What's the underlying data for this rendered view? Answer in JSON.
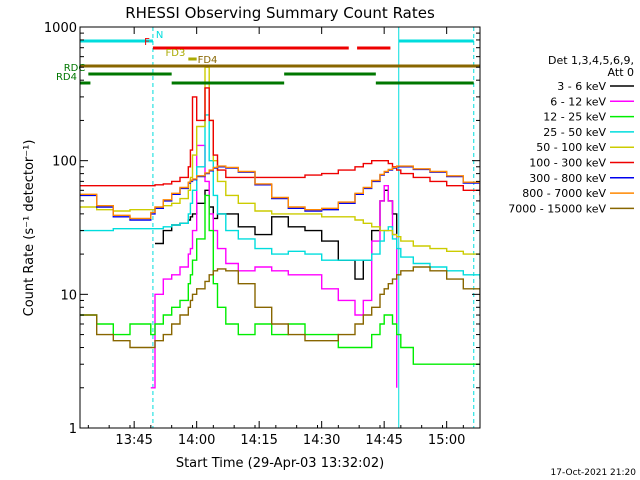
{
  "chart_data": {
    "type": "line",
    "title": "RHESSI Observing Summary Count Rates",
    "xlabel": "Start Time (29-Apr-03 13:32:02)",
    "ylabel": "Count Rate (s⁻¹ detector⁻¹)",
    "ylog": true,
    "ylim": [
      1,
      1000
    ],
    "xlim": [
      0,
      96
    ],
    "x_unit": "minutes after 13:32:02",
    "x_ticks": [
      {
        "t": 13.0,
        "label": "13:45"
      },
      {
        "t": 28.0,
        "label": "14:00"
      },
      {
        "t": 43.0,
        "label": "14:15"
      },
      {
        "t": 58.0,
        "label": "14:30"
      },
      {
        "t": 73.0,
        "label": "14:45"
      },
      {
        "t": 88.0,
        "label": "15:00"
      }
    ],
    "y_ticks": [
      {
        "v": 1,
        "label": "1"
      },
      {
        "v": 10,
        "label": "10"
      },
      {
        "v": 100,
        "label": "100"
      },
      {
        "v": 1000,
        "label": "1000"
      }
    ],
    "legend": {
      "position": "right",
      "header": [
        "Det 1,3,4,5,6,9,",
        "Att 0"
      ],
      "entries": [
        {
          "label": "3 - 6 keV",
          "color": "#000000"
        },
        {
          "label": "6 - 12 keV",
          "color": "#ff00ff"
        },
        {
          "label": "12 - 25 keV",
          "color": "#00ee00"
        },
        {
          "label": "25 - 50 keV",
          "color": "#00dddd"
        },
        {
          "label": "50 - 100 keV",
          "color": "#cccc00"
        },
        {
          "label": "100 - 300 keV",
          "color": "#ee0000"
        },
        {
          "label": "300 - 800 keV",
          "color": "#0000ee"
        },
        {
          "label": "800 - 7000 keV",
          "color": "#ff8800"
        },
        {
          "label": "7000 - 15000 keV",
          "color": "#886600"
        }
      ]
    },
    "flags": [
      {
        "label": "N",
        "color": "#00dddd",
        "level": 1,
        "segments": [
          [
            0,
            17.5
          ],
          [
            76.5,
            94.5
          ]
        ]
      },
      {
        "label": "F",
        "color": "#ee0000",
        "level": 2,
        "segments": [
          [
            17.5,
            64.5
          ],
          [
            66.5,
            74.5
          ]
        ]
      },
      {
        "label": "FD3",
        "color": "#aaaa00",
        "level": 3,
        "segments": [
          [
            26.0,
            28.0
          ]
        ]
      },
      {
        "label": "FD4",
        "color": "#886600",
        "level": 4,
        "segments": [
          [
            0,
            96
          ]
        ]
      },
      {
        "label": "RDC",
        "color": "#007700",
        "level": 5,
        "segments": [
          [
            2.0,
            22.0
          ],
          [
            49.0,
            71.0
          ]
        ]
      },
      {
        "label": "RD4",
        "color": "#007700",
        "level": 6,
        "segments": [
          [
            0,
            2.5
          ],
          [
            22.0,
            49.0
          ],
          [
            71.0,
            94.5
          ]
        ]
      }
    ],
    "vlines": [
      {
        "t": 17.5,
        "color": "#00dddd",
        "style": "dashed"
      },
      {
        "t": 76.5,
        "color": "#00dddd",
        "style": "solid"
      },
      {
        "t": 94.5,
        "color": "#00dddd",
        "style": "dashed"
      }
    ],
    "x": [
      0,
      4,
      8,
      12,
      17,
      18,
      20,
      22,
      24,
      26,
      26.5,
      27,
      28,
      30,
      31,
      32,
      33,
      35,
      38,
      42,
      46,
      50,
      54,
      58,
      62,
      66,
      68,
      70,
      72,
      73,
      74,
      75,
      76,
      77,
      80,
      84,
      88,
      92,
      96
    ],
    "series": [
      {
        "name": "3 - 6 keV",
        "values": [
          null,
          null,
          null,
          null,
          null,
          24,
          30,
          33,
          34,
          36,
          38,
          40,
          48,
          60,
          45,
          37,
          40,
          40,
          32,
          28,
          38,
          32,
          30,
          25,
          18,
          13,
          18,
          30,
          50,
          60,
          50,
          40,
          28,
          null,
          null,
          null,
          null,
          null,
          null
        ]
      },
      {
        "name": "6 - 12 keV",
        "values": [
          null,
          null,
          null,
          null,
          2,
          10,
          13,
          14,
          16,
          20,
          22,
          30,
          130,
          70,
          40,
          30,
          22,
          17,
          15,
          16,
          15,
          14,
          14,
          11,
          9,
          7,
          9,
          25,
          50,
          65,
          50,
          28,
          2,
          null,
          null,
          null,
          null,
          null,
          null
        ]
      },
      {
        "name": "12 - 25 keV",
        "values": [
          7,
          6,
          5,
          6,
          5,
          6,
          7,
          8,
          9,
          12,
          14,
          18,
          26,
          55,
          30,
          12,
          8,
          6,
          5,
          6,
          5,
          6,
          5,
          5,
          4,
          4,
          4,
          5,
          6,
          7,
          7,
          6,
          5,
          4,
          3,
          3,
          3,
          3,
          3
        ]
      },
      {
        "name": "25 - 50 keV",
        "values": [
          30,
          30,
          31,
          31,
          31,
          31,
          32,
          33,
          34,
          40,
          48,
          60,
          90,
          220,
          100,
          55,
          40,
          30,
          26,
          22,
          20,
          21,
          20,
          18,
          18,
          18,
          18,
          20,
          25,
          30,
          32,
          26,
          22,
          19,
          17,
          16,
          15,
          14,
          13
        ]
      },
      {
        "name": "50 - 100 keV",
        "values": [
          45,
          43,
          42,
          43,
          43,
          44,
          46,
          48,
          52,
          60,
          75,
          110,
          180,
          500,
          200,
          100,
          70,
          55,
          48,
          42,
          40,
          40,
          40,
          38,
          38,
          36,
          34,
          32,
          30,
          30,
          30,
          28,
          27,
          25,
          23,
          22,
          21,
          20,
          20
        ]
      },
      {
        "name": "100 - 300 keV",
        "values": [
          65,
          65,
          65,
          65,
          65,
          66,
          67,
          70,
          75,
          90,
          120,
          300,
          200,
          350,
          200,
          110,
          85,
          75,
          75,
          75,
          75,
          75,
          78,
          80,
          85,
          90,
          95,
          100,
          100,
          100,
          95,
          90,
          85,
          80,
          75,
          70,
          65,
          60,
          55
        ]
      },
      {
        "name": "300 - 800 keV",
        "values": [
          55,
          45,
          38,
          36,
          40,
          44,
          50,
          56,
          62,
          68,
          70,
          72,
          76,
          80,
          84,
          88,
          90,
          88,
          82,
          66,
          52,
          44,
          42,
          43,
          48,
          56,
          62,
          70,
          78,
          82,
          85,
          88,
          90,
          90,
          86,
          82,
          76,
          68,
          60
        ]
      },
      {
        "name": "800 - 7000 keV",
        "values": [
          56,
          46,
          39,
          37,
          41,
          45,
          51,
          57,
          63,
          69,
          71,
          73,
          77,
          81,
          85,
          89,
          91,
          89,
          83,
          67,
          53,
          45,
          43,
          44,
          49,
          57,
          63,
          71,
          79,
          83,
          86,
          89,
          91,
          91,
          87,
          83,
          77,
          69,
          61
        ]
      },
      {
        "name": "7000 - 15000 keV",
        "values": [
          7,
          5,
          4.5,
          4,
          4,
          4.5,
          5,
          6,
          7,
          8,
          9,
          10,
          11,
          12.5,
          14,
          15,
          15.5,
          15,
          12,
          8,
          6,
          5,
          4.5,
          4.5,
          5,
          6,
          7,
          8,
          10,
          11,
          12,
          13,
          14,
          15,
          16,
          15,
          13,
          11,
          9
        ]
      }
    ]
  },
  "timestamp": "17-Oct-2021 21:20"
}
